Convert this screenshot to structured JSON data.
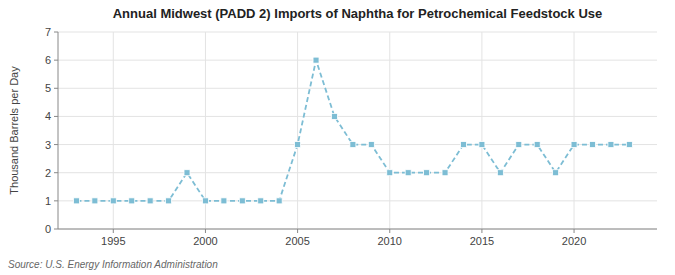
{
  "chart_data": {
    "type": "line",
    "title": "Annual Midwest (PADD 2) Imports of Naphtha for Petrochemical Feedstock Use",
    "ylabel": "Thousand Barrels per Day",
    "source": "Source: U.S. Energy Information Administration",
    "x": [
      1993,
      1994,
      1995,
      1996,
      1997,
      1998,
      1999,
      2000,
      2001,
      2002,
      2003,
      2004,
      2005,
      2006,
      2007,
      2008,
      2009,
      2010,
      2011,
      2012,
      2013,
      2014,
      2015,
      2016,
      2017,
      2018,
      2019,
      2020,
      2021,
      2022,
      2023
    ],
    "values": [
      1,
      1,
      1,
      1,
      1,
      1,
      2,
      1,
      1,
      1,
      1,
      1,
      3,
      6,
      4,
      3,
      3,
      2,
      2,
      2,
      2,
      3,
      3,
      2,
      3,
      3,
      2,
      3,
      3,
      3,
      3
    ],
    "color": "#7dbdd4",
    "marker": "square",
    "line_style": "dashed",
    "xlim": [
      1992,
      2024.5
    ],
    "ylim": [
      0,
      7
    ],
    "xticks": [
      1995,
      2000,
      2005,
      2010,
      2015,
      2020
    ],
    "yticks": [
      0,
      1,
      2,
      3,
      4,
      5,
      6,
      7
    ],
    "grid": true
  }
}
